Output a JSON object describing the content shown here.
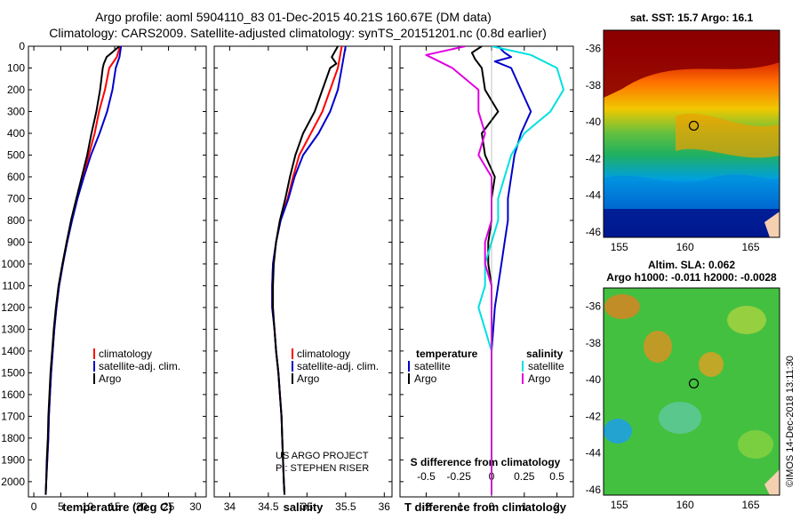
{
  "header": {
    "line1": "Argo profile: aoml 5904110_83 01-Dec-2015 40.21S 160.67E (DM data)",
    "line2": "Climatology: CARS2009. Satellite-adjusted climatology: synTS_20151201.nc (0.8d earlier)"
  },
  "colors": {
    "climatology": "#ff0000",
    "satellite": "#0000cc",
    "argo": "#000000",
    "sal_satellite": "#00e0e0",
    "sal_argo": "#e000e0"
  },
  "depth_ticks": [
    "0",
    "100",
    "200",
    "300",
    "400",
    "500",
    "600",
    "700",
    "800",
    "900",
    "1000",
    "1100",
    "1200",
    "1300",
    "1400",
    "1500",
    "1600",
    "1700",
    "1800",
    "1900",
    "2000"
  ],
  "legend": {
    "climatology": "climatology",
    "satellite_adj": "satellite-adj. clim.",
    "argo": "Argo"
  },
  "diff_legend": {
    "temperature": "temperature",
    "salinity": "salinity",
    "satellite": "satellite",
    "argo": "Argo"
  },
  "credit": {
    "line1": "US ARGO PROJECT",
    "line2": "PI: STEPHEN RISER"
  },
  "maps": {
    "sst_title": "sat. SST: 15.7 Argo: 16.1",
    "sla_title1": "Altim. SLA: 0.062",
    "sla_title2": "Argo h1000: -0.011 h2000: -0.0028",
    "lon_ticks": [
      "155",
      "160",
      "165"
    ],
    "lat_ticks": [
      "-36",
      "-38",
      "-40",
      "-42",
      "-44",
      "-46"
    ],
    "float_lon": 160.67,
    "float_lat": -40.21
  },
  "stamp": "©IMOS 14-Dec-2018 13:11:30",
  "chart_data": [
    {
      "type": "line",
      "name": "temperature",
      "xlabel": "temperature (deg C)",
      "ylabel": "",
      "xlim": [
        -1,
        32
      ],
      "ylim": [
        2070,
        0
      ],
      "xticks": [
        "0",
        "5",
        "10",
        "15",
        "20",
        "25",
        "30"
      ],
      "series": [
        {
          "name": "climatology",
          "color": "#ff0000",
          "points": [
            [
              16,
              0
            ],
            [
              15.4,
              50
            ],
            [
              14,
              100
            ],
            [
              13.2,
              200
            ],
            [
              12.1,
              300
            ],
            [
              11.3,
              400
            ],
            [
              10.2,
              500
            ],
            [
              9.1,
              600
            ],
            [
              8.0,
              700
            ],
            [
              7.0,
              800
            ],
            [
              6.1,
              900
            ],
            [
              5.4,
              1000
            ],
            [
              4.7,
              1100
            ],
            [
              4.2,
              1200
            ],
            [
              3.8,
              1300
            ],
            [
              3.5,
              1400
            ],
            [
              3.2,
              1500
            ],
            [
              3.0,
              1600
            ],
            [
              2.8,
              1700
            ],
            [
              2.7,
              1800
            ],
            [
              2.5,
              1900
            ],
            [
              2.3,
              2000
            ],
            [
              2.2,
              2060
            ]
          ]
        },
        {
          "name": "satellite-adj. clim.",
          "color": "#0000cc",
          "points": [
            [
              16.2,
              0
            ],
            [
              15.9,
              50
            ],
            [
              15.2,
              100
            ],
            [
              14.6,
              200
            ],
            [
              13.6,
              300
            ],
            [
              12.2,
              400
            ],
            [
              10.6,
              500
            ],
            [
              9.3,
              600
            ],
            [
              8.1,
              700
            ],
            [
              7.1,
              800
            ],
            [
              6.2,
              900
            ],
            [
              5.4,
              1000
            ],
            [
              4.7,
              1100
            ],
            [
              4.2,
              1200
            ],
            [
              3.8,
              1300
            ],
            [
              3.5,
              1400
            ],
            [
              3.2,
              1500
            ],
            [
              3.0,
              1600
            ],
            [
              2.8,
              1700
            ],
            [
              2.7,
              1800
            ],
            [
              2.5,
              1900
            ],
            [
              2.3,
              2000
            ],
            [
              2.2,
              2060
            ]
          ]
        },
        {
          "name": "Argo",
          "color": "#000000",
          "points": [
            [
              15.9,
              0
            ],
            [
              13.5,
              50
            ],
            [
              13,
              80
            ],
            [
              12.8,
              100
            ],
            [
              12.3,
              200
            ],
            [
              11.6,
              300
            ],
            [
              10.7,
              400
            ],
            [
              9.9,
              500
            ],
            [
              8.9,
              600
            ],
            [
              7.9,
              700
            ],
            [
              6.9,
              800
            ],
            [
              6.1,
              900
            ],
            [
              5.3,
              1000
            ],
            [
              4.6,
              1100
            ],
            [
              4.1,
              1200
            ],
            [
              3.7,
              1300
            ],
            [
              3.4,
              1400
            ],
            [
              3.1,
              1500
            ],
            [
              2.9,
              1600
            ],
            [
              2.7,
              1700
            ],
            [
              2.6,
              1800
            ],
            [
              2.4,
              1900
            ],
            [
              2.3,
              2000
            ],
            [
              2.2,
              2060
            ]
          ]
        }
      ]
    },
    {
      "type": "line",
      "name": "salinity",
      "xlabel": "salinity",
      "ylabel": "",
      "xlim": [
        33.8,
        36.1
      ],
      "ylim": [
        2070,
        0
      ],
      "xticks": [
        "34",
        "34.5",
        "35",
        "35.5",
        "36"
      ],
      "series": [
        {
          "name": "climatology",
          "color": "#ff0000",
          "points": [
            [
              35.45,
              0
            ],
            [
              35.4,
              100
            ],
            [
              35.3,
              200
            ],
            [
              35.2,
              300
            ],
            [
              35.05,
              400
            ],
            [
              34.9,
              500
            ],
            [
              34.82,
              600
            ],
            [
              34.75,
              700
            ],
            [
              34.65,
              800
            ],
            [
              34.6,
              900
            ],
            [
              34.56,
              1000
            ],
            [
              34.55,
              1100
            ],
            [
              34.55,
              1200
            ],
            [
              34.58,
              1300
            ],
            [
              34.6,
              1400
            ],
            [
              34.63,
              1500
            ],
            [
              34.65,
              1600
            ],
            [
              34.67,
              1700
            ],
            [
              34.68,
              1800
            ],
            [
              34.69,
              1900
            ],
            [
              34.7,
              2000
            ],
            [
              34.71,
              2060
            ]
          ]
        },
        {
          "name": "satellite-adj. clim.",
          "color": "#0000cc",
          "points": [
            [
              35.5,
              0
            ],
            [
              35.45,
              100
            ],
            [
              35.4,
              200
            ],
            [
              35.3,
              300
            ],
            [
              35.15,
              400
            ],
            [
              34.95,
              500
            ],
            [
              34.84,
              600
            ],
            [
              34.76,
              700
            ],
            [
              34.66,
              800
            ],
            [
              34.6,
              900
            ],
            [
              34.56,
              1000
            ],
            [
              34.55,
              1100
            ],
            [
              34.55,
              1200
            ],
            [
              34.58,
              1300
            ],
            [
              34.6,
              1400
            ],
            [
              34.63,
              1500
            ],
            [
              34.65,
              1600
            ],
            [
              34.67,
              1700
            ],
            [
              34.68,
              1800
            ],
            [
              34.69,
              1900
            ],
            [
              34.7,
              2000
            ],
            [
              34.71,
              2060
            ]
          ]
        },
        {
          "name": "Argo",
          "color": "#000000",
          "points": [
            [
              35.4,
              0
            ],
            [
              35.32,
              50
            ],
            [
              35.38,
              80
            ],
            [
              35.3,
              100
            ],
            [
              35.2,
              200
            ],
            [
              35.1,
              300
            ],
            [
              34.95,
              400
            ],
            [
              34.85,
              500
            ],
            [
              34.78,
              600
            ],
            [
              34.72,
              700
            ],
            [
              34.65,
              800
            ],
            [
              34.6,
              900
            ],
            [
              34.57,
              1000
            ],
            [
              34.56,
              1100
            ],
            [
              34.56,
              1200
            ],
            [
              34.58,
              1300
            ],
            [
              34.6,
              1400
            ],
            [
              34.63,
              1500
            ],
            [
              34.65,
              1600
            ],
            [
              34.67,
              1700
            ],
            [
              34.68,
              1800
            ],
            [
              34.69,
              1900
            ],
            [
              34.7,
              2000
            ],
            [
              34.71,
              2060
            ]
          ]
        }
      ]
    },
    {
      "type": "line",
      "name": "difference",
      "xlabel": "T difference from climatology",
      "ylabel": "",
      "top_label": "S difference from climatology",
      "xlim": [
        -2.8,
        2.5
      ],
      "ylim": [
        2070,
        0
      ],
      "xticks": [
        "-2",
        "-1",
        "0",
        "1",
        "2"
      ],
      "top_ticks": [
        "-0.5",
        "-0.25",
        "0",
        "0.25",
        "0.5"
      ],
      "series": [
        {
          "name": "T satellite",
          "color": "#0000cc",
          "points": [
            [
              0.2,
              0
            ],
            [
              0.4,
              30
            ],
            [
              0.6,
              50
            ],
            [
              0.1,
              70
            ],
            [
              0.6,
              100
            ],
            [
              0.9,
              200
            ],
            [
              1.2,
              300
            ],
            [
              0.9,
              400
            ],
            [
              0.7,
              500
            ],
            [
              0.6,
              600
            ],
            [
              0.5,
              700
            ],
            [
              0.5,
              800
            ],
            [
              0.4,
              900
            ],
            [
              0.3,
              1000
            ],
            [
              0.2,
              1100
            ],
            [
              0.1,
              1200
            ],
            [
              0.05,
              1300
            ],
            [
              0,
              1400
            ],
            [
              0,
              1500
            ],
            [
              0,
              1600
            ],
            [
              0,
              1700
            ],
            [
              0,
              1800
            ],
            [
              0,
              1900
            ],
            [
              0,
              2000
            ],
            [
              0,
              2060
            ]
          ]
        },
        {
          "name": "T Argo",
          "color": "#000000",
          "points": [
            [
              -0.3,
              0
            ],
            [
              -0.6,
              30
            ],
            [
              -0.5,
              60
            ],
            [
              -0.3,
              100
            ],
            [
              -0.2,
              200
            ],
            [
              0.2,
              300
            ],
            [
              -0.3,
              400
            ],
            [
              -0.2,
              500
            ],
            [
              0.1,
              600
            ],
            [
              0,
              700
            ],
            [
              0,
              800
            ],
            [
              -0.1,
              900
            ],
            [
              -0.1,
              1000
            ],
            [
              0,
              1100
            ],
            [
              0,
              1200
            ],
            [
              0,
              1300
            ],
            [
              0,
              1400
            ],
            [
              0,
              1500
            ],
            [
              0,
              1600
            ],
            [
              0,
              1700
            ],
            [
              0,
              1800
            ],
            [
              0,
              1900
            ],
            [
              0,
              2000
            ],
            [
              0,
              2060
            ]
          ]
        },
        {
          "name": "S satellite",
          "color": "#00e0e0",
          "points": [
            [
              0,
              0
            ],
            [
              0.3,
              40
            ],
            [
              0.5,
              100
            ],
            [
              0.55,
              200
            ],
            [
              0.45,
              300
            ],
            [
              0.25,
              400
            ],
            [
              0.15,
              500
            ],
            [
              0.1,
              600
            ],
            [
              0.05,
              700
            ],
            [
              0.05,
              800
            ],
            [
              0,
              900
            ],
            [
              -0.05,
              1000
            ],
            [
              -0.05,
              1100
            ],
            [
              -0.1,
              1200
            ],
            [
              -0.05,
              1300
            ],
            [
              0,
              1400
            ],
            [
              0,
              1500
            ],
            [
              0,
              1600
            ],
            [
              0,
              1700
            ],
            [
              0,
              1800
            ],
            [
              0,
              1900
            ],
            [
              0,
              2000
            ],
            [
              0,
              2060
            ]
          ]
        },
        {
          "name": "S Argo",
          "color": "#e000e0",
          "points": [
            [
              -0.2,
              0
            ],
            [
              -0.5,
              40
            ],
            [
              -0.3,
              100
            ],
            [
              -0.1,
              200
            ],
            [
              -0.1,
              300
            ],
            [
              -0.05,
              400
            ],
            [
              -0.1,
              500
            ],
            [
              0,
              600
            ],
            [
              0,
              700
            ],
            [
              0,
              800
            ],
            [
              -0.05,
              900
            ],
            [
              -0.05,
              1000
            ],
            [
              0,
              1100
            ],
            [
              0,
              1200
            ],
            [
              0,
              1300
            ],
            [
              0,
              1400
            ],
            [
              0,
              1500
            ],
            [
              0,
              1600
            ],
            [
              0,
              1700
            ],
            [
              0,
              1800
            ],
            [
              0,
              1900
            ],
            [
              0,
              2000
            ],
            [
              0,
              2060
            ]
          ]
        }
      ]
    }
  ]
}
